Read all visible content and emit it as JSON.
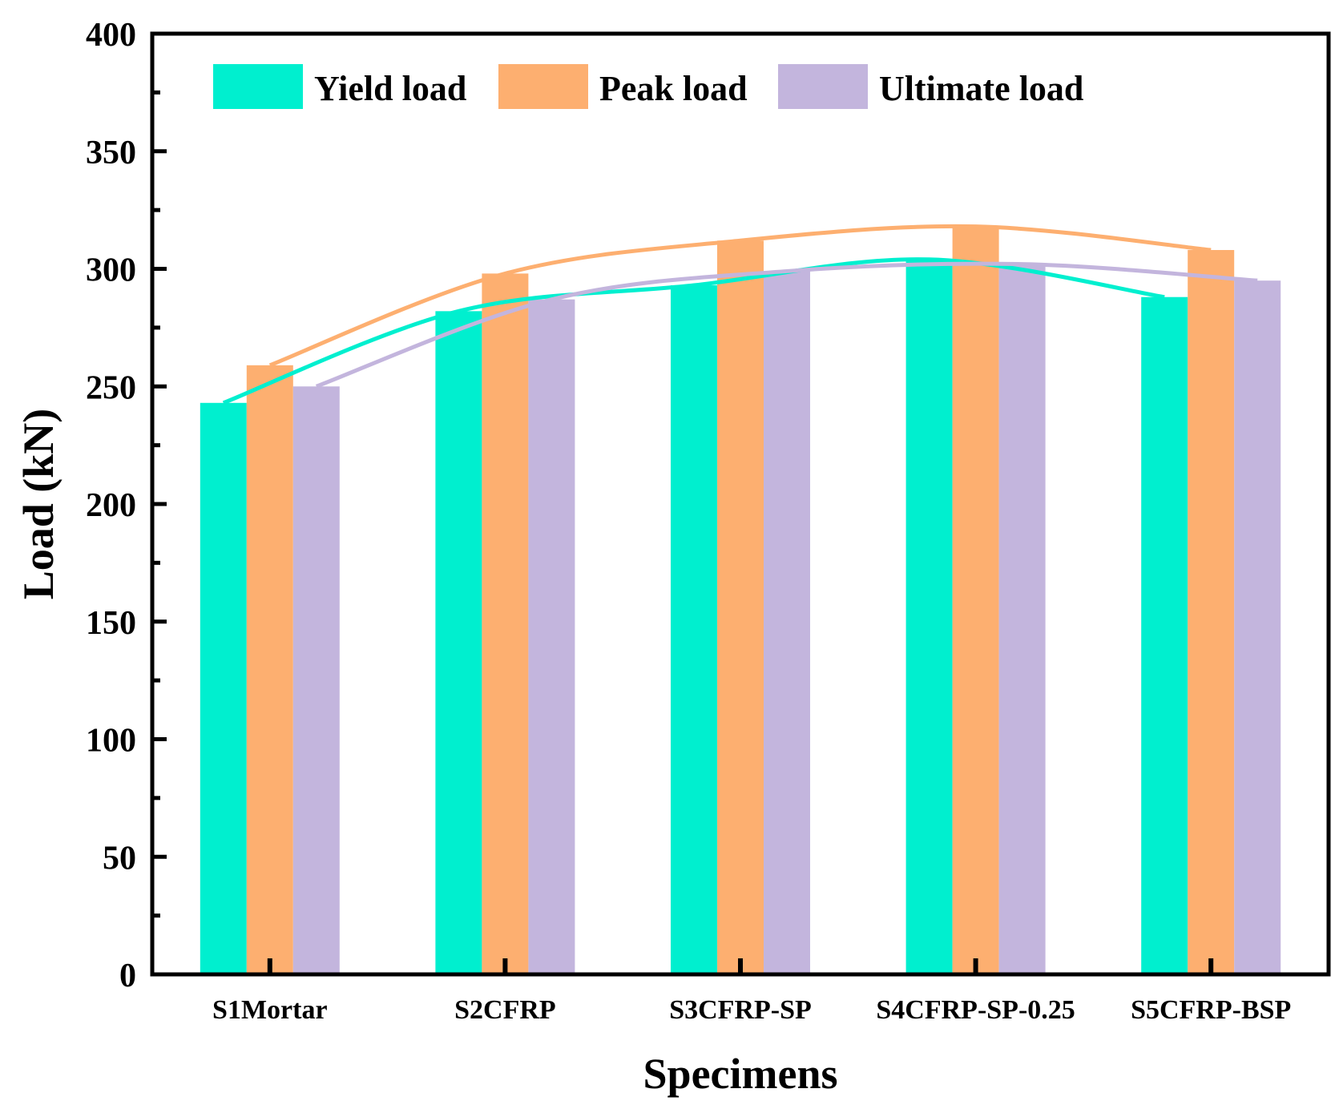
{
  "chart_data": {
    "type": "bar",
    "xlabel": "Specimens",
    "ylabel": "Load (kN)",
    "ylim": [
      0,
      400
    ],
    "yticks": [
      0,
      50,
      100,
      150,
      200,
      250,
      300,
      350,
      400
    ],
    "grid": false,
    "legend_position": "top",
    "categories": [
      "S1Mortar",
      "S2CFRP",
      "S3CFRP-SP",
      "S4CFRP-SP-0.25",
      "S5CFRP-BSP"
    ],
    "series": [
      {
        "name": "Yield load",
        "color": "#00EFCF",
        "values": [
          243,
          282,
          293,
          304,
          288
        ]
      },
      {
        "name": "Peak load",
        "color": "#FDAF70",
        "values": [
          259,
          298,
          312,
          318,
          308
        ]
      },
      {
        "name": "Ultimate load",
        "color": "#C3B5DD",
        "values": [
          250,
          287,
          299,
          302,
          295
        ]
      }
    ]
  }
}
